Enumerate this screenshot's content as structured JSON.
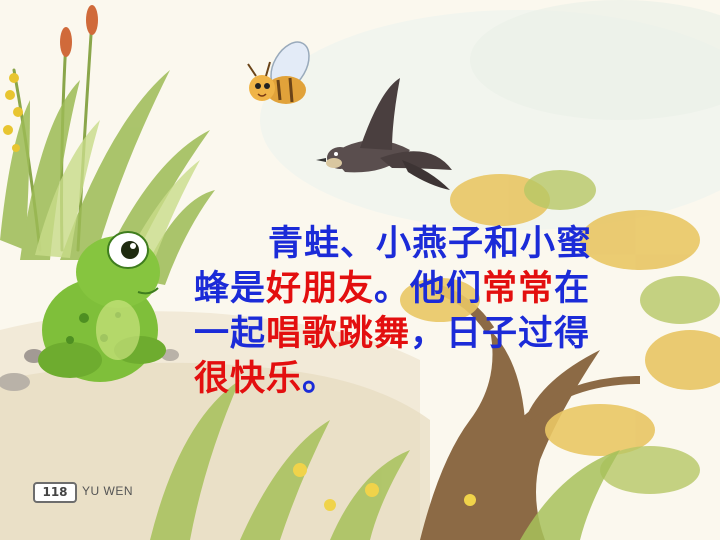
{
  "lesson_text": {
    "lines": [
      [
        {
          "text": "青蛙、小燕子和小蜜",
          "color": "blue"
        }
      ],
      [
        {
          "text": "蜂是",
          "color": "blue"
        },
        {
          "text": "好朋友",
          "color": "red"
        },
        {
          "text": "。他们",
          "color": "blue"
        },
        {
          "text": "常常",
          "color": "red"
        },
        {
          "text": "在",
          "color": "blue"
        }
      ],
      [
        {
          "text": "一起",
          "color": "blue"
        },
        {
          "text": "唱歌跳舞",
          "color": "red"
        },
        {
          "text": "，日子过得",
          "color": "blue"
        }
      ],
      [
        {
          "text": "很快乐",
          "color": "red"
        },
        {
          "text": "。",
          "color": "blue"
        }
      ]
    ]
  },
  "footer": {
    "page_number": "118",
    "brand": "YU WEN"
  },
  "colors": {
    "text_blue": "#1b2bd8",
    "text_red": "#e30f0f"
  }
}
